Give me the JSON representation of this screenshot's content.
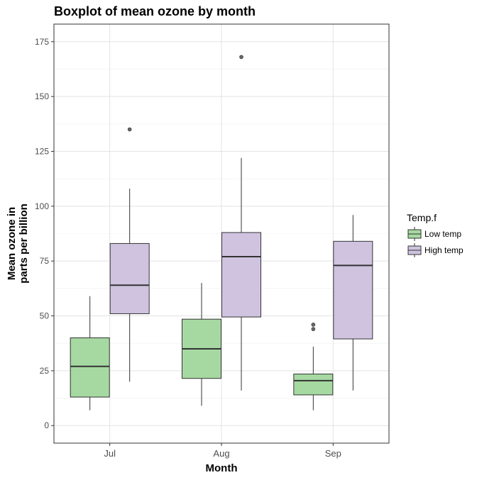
{
  "chart_data": {
    "type": "boxplot",
    "title": "Boxplot of mean ozone by month",
    "xlabel": "Month",
    "ylabel": [
      "Mean ozone in",
      "parts per billion"
    ],
    "categories": [
      "Jul",
      "Aug",
      "Sep"
    ],
    "ylim": [
      -8,
      183
    ],
    "yticks": [
      0,
      25,
      50,
      75,
      100,
      125,
      150,
      175
    ],
    "grid": true,
    "legend": {
      "title": "Temp.f",
      "position": "right"
    },
    "series": [
      {
        "name": "Low temp",
        "color": "#a6d9a2",
        "boxes": [
          {
            "category": "Jul",
            "min": 7,
            "q1": 13,
            "median": 27,
            "q3": 40,
            "max": 59,
            "outliers": []
          },
          {
            "category": "Aug",
            "min": 9,
            "q1": 21.5,
            "median": 35,
            "q3": 48.5,
            "max": 65,
            "outliers": []
          },
          {
            "category": "Sep",
            "min": 7,
            "q1": 14,
            "median": 20.5,
            "q3": 23.5,
            "max": 36,
            "outliers": [
              44,
              46
            ]
          }
        ]
      },
      {
        "name": "High temp",
        "color": "#cfc3e0",
        "boxes": [
          {
            "category": "Jul",
            "min": 20,
            "q1": 51,
            "median": 64,
            "q3": 83,
            "max": 108,
            "outliers": [
              135
            ]
          },
          {
            "category": "Aug",
            "min": 16,
            "q1": 49.5,
            "median": 77,
            "q3": 88,
            "max": 122,
            "outliers": [
              168
            ]
          },
          {
            "category": "Sep",
            "min": 16,
            "q1": 39.5,
            "median": 73,
            "q3": 84,
            "max": 96,
            "outliers": []
          }
        ]
      }
    ]
  }
}
